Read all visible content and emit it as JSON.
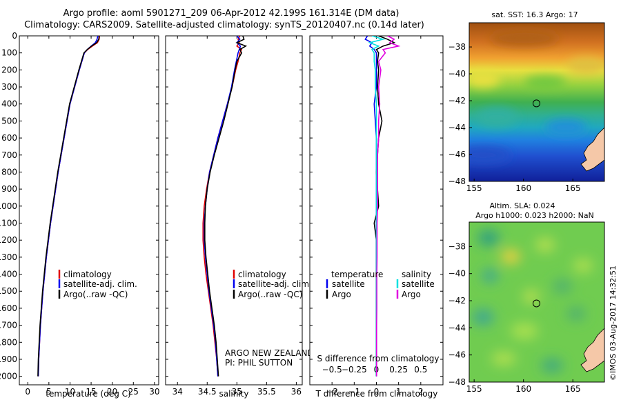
{
  "title_line1": "Argo profile: aoml 5901271_209 06-Apr-2012 42.199S 161.314E (DM data)",
  "title_line2": "Climatology: CARS2009. Satellite-adjusted climatology: synTS_20120407.nc (0.14d later)",
  "colors": {
    "climatology": "#e00000",
    "satellite": "#0000ee",
    "argo": "#000000",
    "sat_salinity": "#00e0e0",
    "argo_salinity": "#e000e0"
  },
  "legend_profiles": [
    "climatology",
    "satellite-adj. clim.",
    "Argo(..raw -QC)"
  ],
  "legend_diff": {
    "temperature": "temperature",
    "salinity": "salinity",
    "satellite": "satellite",
    "argo": "Argo"
  },
  "annotation": {
    "line1": "ARGO NEW ZEALAND",
    "line2": "PI: PHIL SUTTON"
  },
  "diff_top_label": "S difference from climatology",
  "map1_title": "sat. SST: 16.3 Argo: 17",
  "map2_title_line1": "Altim. SLA: 0.024",
  "map2_title_line2": "Argo h1000: 0.023 h2000: NaN",
  "credit": "©IMOS 03-Aug-2017 14:32:51",
  "chart_data": [
    {
      "type": "line",
      "xlabel": "temperature (deg C)",
      "ylabel": "",
      "xlim": [
        -2,
        31
      ],
      "ylim": [
        2050,
        0
      ],
      "xticks": [
        0,
        5,
        10,
        15,
        20,
        25,
        30
      ],
      "yticks": [
        0,
        100,
        200,
        300,
        400,
        500,
        600,
        700,
        800,
        900,
        1000,
        1100,
        1200,
        1300,
        1400,
        1500,
        1600,
        1700,
        1800,
        1900,
        2000
      ],
      "depth": [
        0,
        20,
        40,
        60,
        80,
        100,
        150,
        200,
        300,
        400,
        500,
        600,
        700,
        800,
        900,
        1000,
        1100,
        1200,
        1300,
        1400,
        1500,
        1600,
        1700,
        1800,
        1900,
        2000
      ],
      "series": [
        {
          "name": "climatology",
          "values": [
            17,
            16.9,
            16.5,
            15.3,
            14.2,
            13.4,
            12.8,
            12.2,
            11.1,
            10.0,
            9.3,
            8.6,
            7.9,
            7.2,
            6.6,
            6.0,
            5.4,
            4.9,
            4.4,
            4.0,
            3.6,
            3.3,
            3.0,
            2.8,
            2.6,
            2.5
          ]
        },
        {
          "name": "satellite-adj. clim.",
          "values": [
            16.6,
            16.4,
            16.0,
            15.0,
            14.1,
            13.4,
            12.8,
            12.2,
            11.1,
            10.0,
            9.3,
            8.6,
            7.9,
            7.2,
            6.6,
            6.0,
            5.4,
            4.9,
            4.4,
            4.0,
            3.6,
            3.3,
            3.0,
            2.8,
            2.6,
            2.5
          ]
        },
        {
          "name": "Argo(..raw -QC)",
          "values": [
            16.9,
            16.8,
            16.3,
            15.1,
            14.1,
            13.3,
            12.7,
            12.1,
            11.0,
            9.9,
            9.2,
            8.5,
            7.8,
            7.1,
            6.5,
            5.9,
            5.3,
            4.8,
            4.3,
            3.9,
            3.5,
            3.2,
            2.9,
            2.7,
            2.5,
            2.4
          ]
        }
      ]
    },
    {
      "type": "line",
      "xlabel": "salinity",
      "xlim": [
        33.8,
        36.1
      ],
      "ylim": [
        2050,
        0
      ],
      "xticks": [
        34,
        34.5,
        35,
        35.5,
        36
      ],
      "xticklabels": [
        "34",
        "34.5",
        "35",
        "35.5",
        "36"
      ],
      "depth": [
        0,
        20,
        40,
        60,
        80,
        100,
        150,
        200,
        300,
        400,
        500,
        600,
        700,
        800,
        900,
        1000,
        1100,
        1200,
        1300,
        1400,
        1500,
        1600,
        1700,
        1800,
        1900,
        2000
      ],
      "series": [
        {
          "name": "climatology",
          "values": [
            35.05,
            35.02,
            35.04,
            35.0,
            35.08,
            35.05,
            35.02,
            34.98,
            34.92,
            34.84,
            34.76,
            34.68,
            34.61,
            34.54,
            34.49,
            34.45,
            34.43,
            34.43,
            34.45,
            34.48,
            34.52,
            34.56,
            34.6,
            34.63,
            34.66,
            34.68
          ]
        },
        {
          "name": "satellite-adj. clim.",
          "values": [
            35.0,
            35.05,
            35.0,
            35.06,
            35.04,
            35.02,
            34.99,
            34.96,
            34.91,
            34.84,
            34.76,
            34.68,
            34.61,
            34.54,
            34.5,
            34.47,
            34.45,
            34.45,
            34.47,
            34.5,
            34.53,
            34.57,
            34.61,
            34.64,
            34.66,
            34.68
          ]
        },
        {
          "name": "Argo(..raw -QC)",
          "values": [
            35.1,
            35.12,
            35.0,
            35.15,
            35.05,
            35.08,
            35.0,
            34.97,
            34.92,
            34.85,
            34.78,
            34.7,
            34.62,
            34.55,
            34.5,
            34.47,
            34.46,
            34.46,
            34.48,
            34.51,
            34.54,
            34.58,
            34.62,
            34.65,
            34.67,
            34.69
          ]
        }
      ]
    },
    {
      "type": "line",
      "xlabel": "T difference from climatology",
      "xlim": [
        -3,
        3
      ],
      "ylim": [
        2050,
        0
      ],
      "xticks": [
        -2,
        -1,
        0,
        1,
        2
      ],
      "xticklabels": [
        "−2",
        "−1",
        "0",
        "1",
        "2"
      ],
      "top_xticks": [
        -0.5,
        -0.25,
        0,
        0.25,
        0.5
      ],
      "top_xticklabels": [
        "−0.5",
        "−0.25",
        "0",
        "0.25",
        "0.5"
      ],
      "depth": [
        0,
        20,
        40,
        60,
        80,
        100,
        150,
        200,
        300,
        400,
        500,
        600,
        700,
        800,
        900,
        1000,
        1100,
        1200,
        1300,
        1400,
        1500,
        1600,
        1700,
        1800,
        1900,
        2000
      ],
      "series": [
        {
          "name": "temperature satellite",
          "values": [
            -0.4,
            -0.5,
            -0.2,
            -0.3,
            -0.1,
            0,
            0,
            0,
            0,
            -0.1,
            -0.05,
            0,
            0,
            0,
            0,
            0,
            0,
            0,
            0,
            0,
            0,
            0,
            0,
            0,
            0,
            0
          ]
        },
        {
          "name": "temperature Argo",
          "values": [
            0.1,
            0.5,
            0.8,
            0.3,
            0.0,
            0.1,
            0.05,
            0.1,
            0.05,
            0.1,
            0.25,
            0.1,
            0.05,
            0.0,
            0.05,
            0.1,
            -0.1,
            0.0,
            0.0,
            0.0,
            0.0,
            0.0,
            0.0,
            0.0,
            0.0,
            0.0
          ]
        },
        {
          "name": "salinity satellite",
          "values": [
            -0.2,
            0.3,
            -0.3,
            0.1,
            -0.2,
            -0.1,
            -0.1,
            -0.05,
            -0.05,
            0,
            0,
            0,
            0,
            0,
            0,
            0,
            0,
            0,
            0,
            0,
            0,
            0,
            0,
            0,
            0,
            0
          ]
        },
        {
          "name": "salinity Argo",
          "values": [
            0.5,
            0.8,
            0.6,
            1.0,
            0.3,
            0.4,
            0.1,
            0.2,
            0.1,
            0.15,
            0.1,
            0.1,
            0.05,
            0.05,
            0.05,
            0.05,
            0.03,
            0.03,
            0.03,
            0.02,
            0.02,
            0.02,
            0.01,
            0.01,
            0.01,
            0.01
          ]
        }
      ]
    },
    {
      "type": "heatmap",
      "xlim": [
        154.5,
        168.2
      ],
      "ylim": [
        -48,
        -36.2
      ],
      "xticks": [
        155,
        160,
        165
      ],
      "yticks": [
        -38,
        -40,
        -42,
        -44,
        -46,
        -48
      ],
      "argo_position": [
        161.314,
        -42.199
      ]
    },
    {
      "type": "heatmap",
      "xlim": [
        154.5,
        168.2
      ],
      "ylim": [
        -48,
        -36.2
      ],
      "xticks": [
        155,
        160,
        165
      ],
      "yticks": [
        -38,
        -40,
        -42,
        -44,
        -46,
        -48
      ],
      "argo_position": [
        161.314,
        -42.199
      ]
    }
  ]
}
